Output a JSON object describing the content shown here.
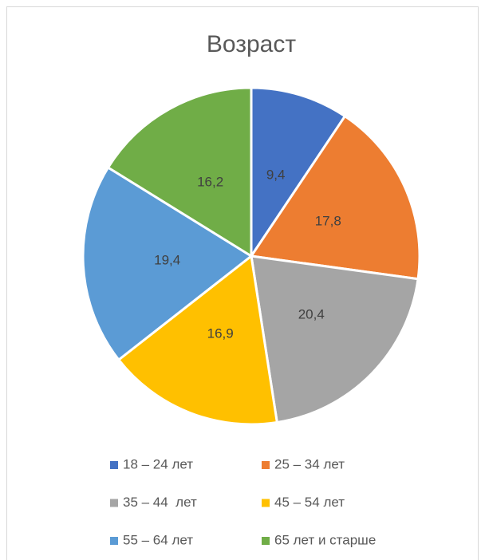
{
  "chart_data": {
    "type": "pie",
    "title": "Возраст",
    "categories": [
      "18 – 24 лет",
      "25 – 34 лет",
      "35 – 44  лет",
      "45 – 54 лет",
      "55 – 64 лет",
      "65 лет и старше"
    ],
    "values": [
      9.4,
      17.8,
      20.4,
      16.9,
      19.4,
      16.2
    ],
    "value_labels": [
      "9,4",
      "17,8",
      "20,4",
      "16,9",
      "19,4",
      "16,2"
    ],
    "colors": [
      "#4472c4",
      "#ed7d31",
      "#a5a5a5",
      "#ffc000",
      "#5b9bd5",
      "#70ad47"
    ],
    "legend": "bottom"
  }
}
